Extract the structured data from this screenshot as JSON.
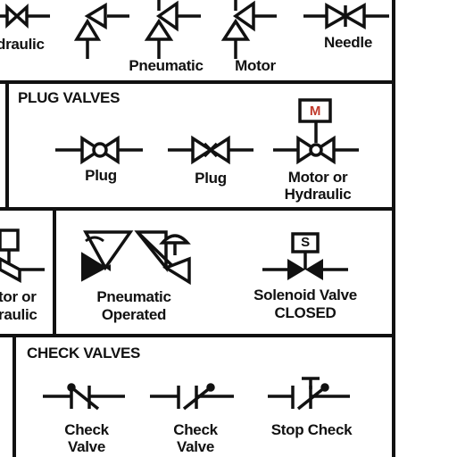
{
  "top_row": {
    "labels": [
      "draulic",
      "Pneumatic",
      "Motor",
      "Needle"
    ]
  },
  "plug_valves": {
    "title": "PLUG VALVES",
    "labels": [
      "Plug",
      "Plug",
      "Motor or",
      "Hydraulic"
    ],
    "actuator_letter": "M"
  },
  "middle_row": {
    "left_labels": [
      "tor or",
      "raulic"
    ],
    "pneumatic_labels": [
      "Pneumatic",
      "Operated"
    ],
    "solenoid_labels": [
      "Solenoid Valve",
      "CLOSED"
    ],
    "solenoid_letter": "S"
  },
  "check_valves": {
    "title": "CHECK VALVES",
    "labels": [
      "Check",
      "Valve",
      "Check",
      "Valve",
      "Stop Check"
    ]
  },
  "colors": {
    "ink": "#111111",
    "accent": "#c0392b",
    "paper": "#ffffff"
  }
}
